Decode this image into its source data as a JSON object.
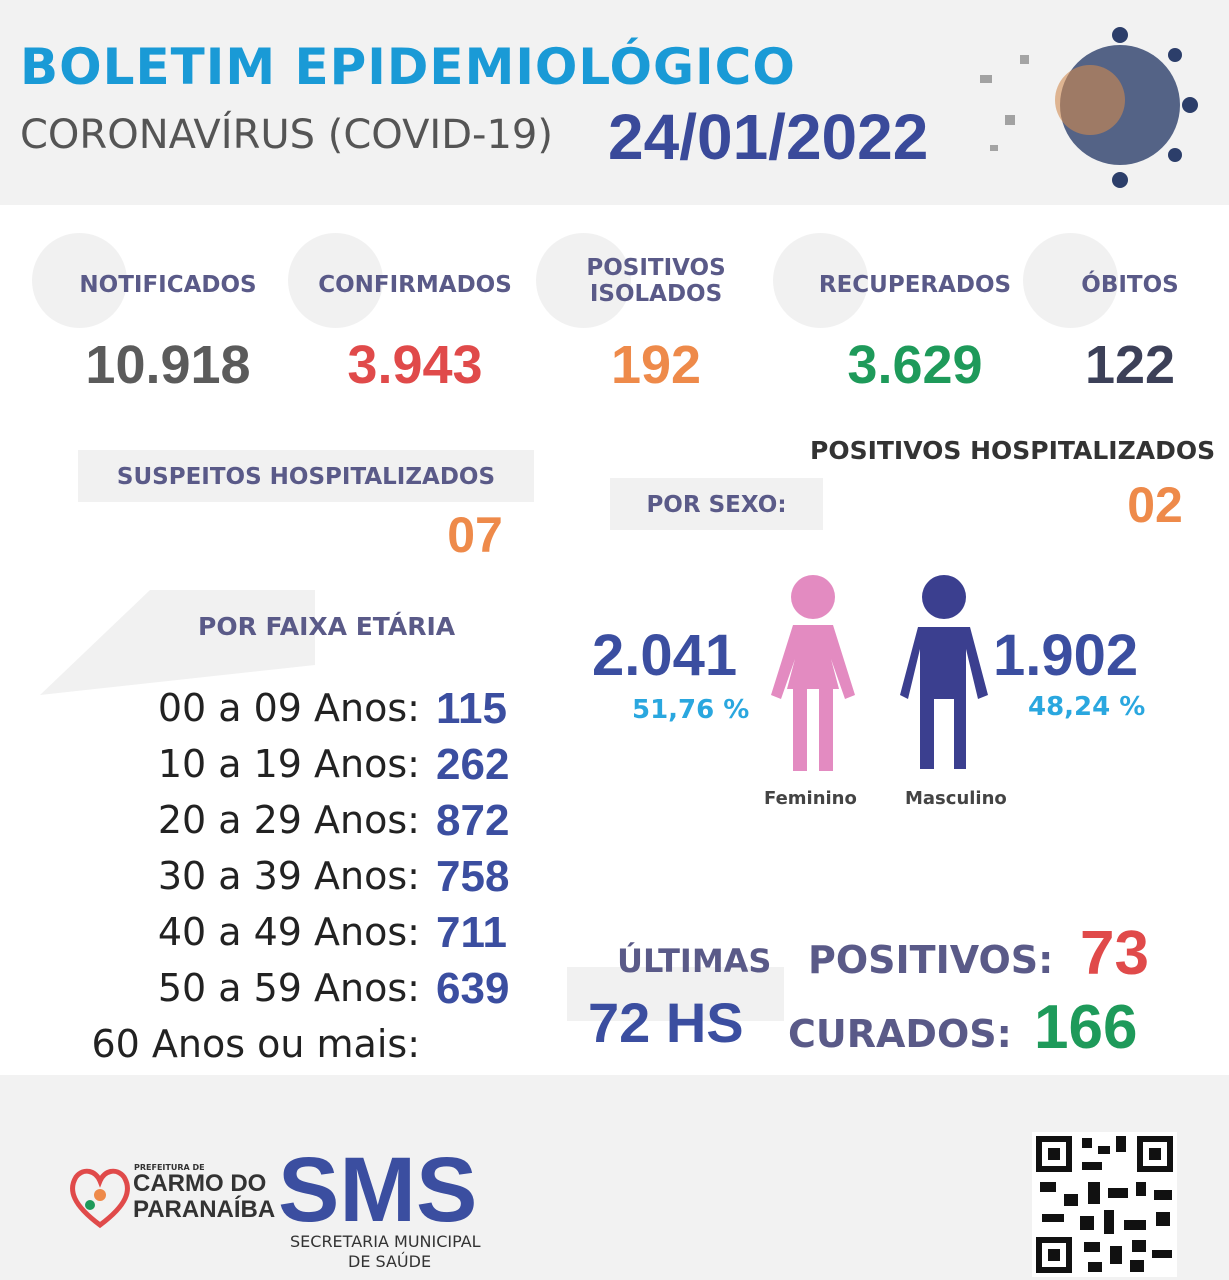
{
  "header": {
    "title": "BOLETIM EPIDEMIOLÓGICO",
    "subtitle": "CORONAVÍRUS (COVID-19)",
    "date": "24/01/2022"
  },
  "stats": [
    {
      "label": "NOTIFICADOS",
      "value": "10.918"
    },
    {
      "label": "CONFIRMADOS",
      "value": "3.943"
    },
    {
      "label": "POSITIVOS ISOLADOS",
      "value": "192"
    },
    {
      "label": "RECUPERADOS",
      "value": "3.629"
    },
    {
      "label": "ÓBITOS",
      "value": "122"
    }
  ],
  "suspected_hospitalized": {
    "label": "SUSPEITOS HOSPITALIZADOS",
    "value": "07"
  },
  "positive_hospitalized": {
    "label": "POSITIVOS HOSPITALIZADOS",
    "value": "02"
  },
  "age": {
    "title": "POR FAIXA ETÁRIA",
    "rows": [
      {
        "label": "00 a 09 Anos:",
        "value": "115"
      },
      {
        "label": "10 a 19 Anos:",
        "value": "262"
      },
      {
        "label": "20 a 29 Anos:",
        "value": "872"
      },
      {
        "label": "30 a 39 Anos:",
        "value": "758"
      },
      {
        "label": "40 a 49 Anos:",
        "value": "711"
      },
      {
        "label": "50 a 59 Anos:",
        "value": "639"
      },
      {
        "label": "60 Anos ou mais:"
      }
    ]
  },
  "sex": {
    "title": "POR SEXO:",
    "female": {
      "value": "2.041",
      "percent": "51,76 %",
      "label": "Feminino"
    },
    "male": {
      "value": "1.902",
      "percent": "48,24 %",
      "label": "Masculino"
    }
  },
  "last72": {
    "title": "ÚLTIMAS",
    "period": "72 HS",
    "positive_label": "POSITIVOS:",
    "positive": "73",
    "cured_label": "CURADOS:",
    "cured": "166"
  },
  "footer": {
    "prefeitura": "PREFEITURA DE",
    "city_line1": "CARMO DO",
    "city_line2": "PARANAÍBA",
    "sms": "SMS",
    "sms_line1": "SECRETARIA MUNICIPAL",
    "sms_line2": "DE SAÚDE"
  }
}
